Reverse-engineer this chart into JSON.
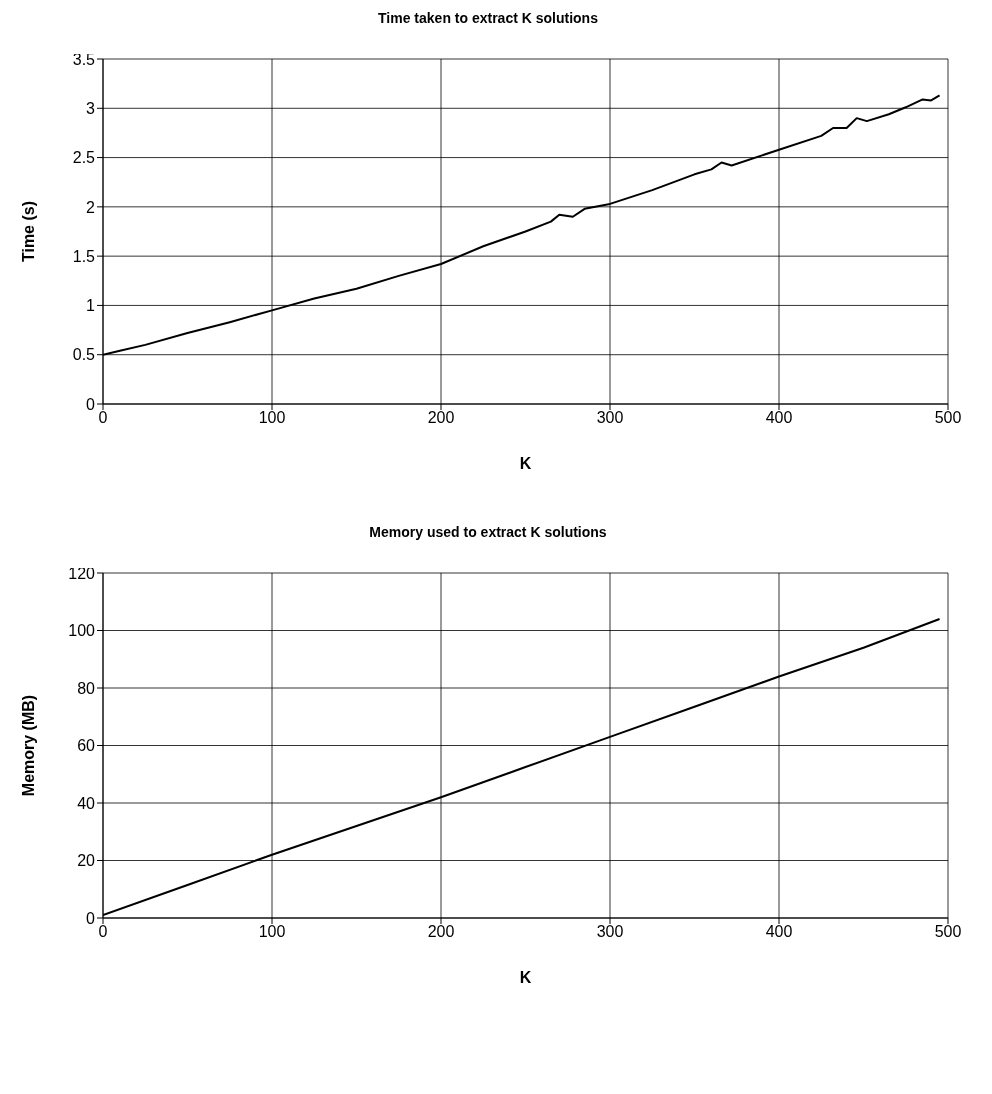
{
  "chart_data": [
    {
      "type": "line",
      "title": "Time taken to extract K solutions",
      "xlabel": "K",
      "ylabel": "Time (s)",
      "xlim": [
        0,
        500
      ],
      "xticks": [
        0,
        100,
        200,
        300,
        400,
        500
      ],
      "ylim": [
        0,
        3.5
      ],
      "yticks": [
        0,
        0.5,
        1,
        1.5,
        2,
        2.5,
        3,
        3.5
      ],
      "grid": true,
      "legend": false,
      "marker": "none",
      "line_style": "solid",
      "series": [
        {
          "color": "#000000",
          "x": [
            0,
            10,
            25,
            50,
            75,
            100,
            125,
            150,
            175,
            200,
            225,
            250,
            265,
            270,
            278,
            285,
            300,
            325,
            350,
            360,
            366,
            372,
            400,
            425,
            432,
            440,
            446,
            452,
            465,
            475,
            485,
            490,
            495
          ],
          "values": [
            0.5,
            0.54,
            0.6,
            0.72,
            0.83,
            0.95,
            1.07,
            1.17,
            1.3,
            1.42,
            1.6,
            1.75,
            1.85,
            1.92,
            1.9,
            1.98,
            2.03,
            2.17,
            2.33,
            2.38,
            2.45,
            2.42,
            2.58,
            2.72,
            2.8,
            2.8,
            2.9,
            2.87,
            2.94,
            3.01,
            3.09,
            3.08,
            3.13
          ]
        }
      ]
    },
    {
      "type": "line",
      "title": "Memory used to extract K solutions",
      "xlabel": "K",
      "ylabel": "Memory (MB)",
      "xlim": [
        0,
        500
      ],
      "xticks": [
        0,
        100,
        200,
        300,
        400,
        500
      ],
      "ylim": [
        0,
        120
      ],
      "yticks": [
        0,
        20,
        40,
        60,
        80,
        100,
        120
      ],
      "grid": true,
      "legend": false,
      "marker": "none",
      "line_style": "solid",
      "series": [
        {
          "color": "#000000",
          "x": [
            0,
            50,
            100,
            150,
            200,
            250,
            300,
            350,
            400,
            450,
            495
          ],
          "values": [
            1,
            11.5,
            22,
            32,
            42,
            52.5,
            63,
            73.5,
            84,
            94,
            104
          ]
        }
      ]
    }
  ]
}
